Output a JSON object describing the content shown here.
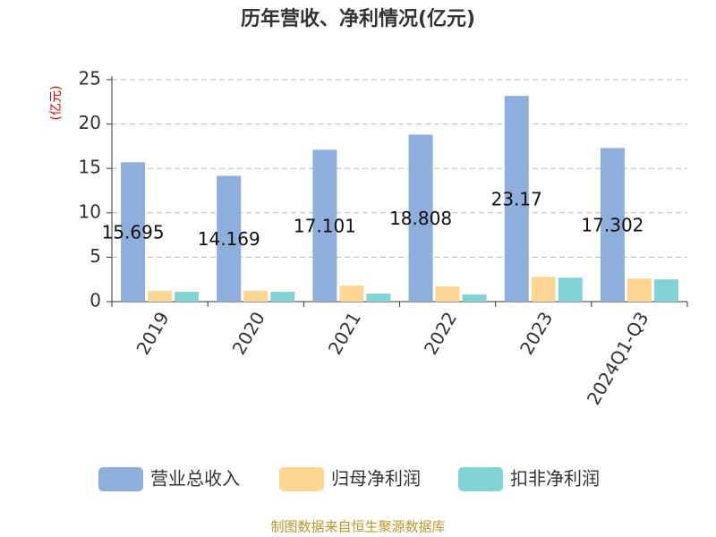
{
  "chart_data": {
    "type": "bar",
    "title": "历年营收、净利情况(亿元)",
    "y_label": "(亿元)",
    "categories": [
      "2019",
      "2020",
      "2021",
      "2022",
      "2023",
      "2024Q1-Q3"
    ],
    "series": [
      {
        "name": "营业总收入",
        "color": "#8eaedc",
        "values": [
          15.695,
          14.169,
          17.101,
          18.808,
          23.17,
          17.302
        ],
        "show_labels": true
      },
      {
        "name": "归母净利润",
        "color": "#fdd694",
        "values": [
          1.2,
          1.2,
          1.8,
          1.7,
          2.8,
          2.6
        ]
      },
      {
        "name": "扣非净利润",
        "color": "#82d3d6",
        "values": [
          1.1,
          1.1,
          0.9,
          0.8,
          2.7,
          2.5
        ]
      }
    ],
    "ylim": [
      0,
      25
    ],
    "yticks": [
      0,
      5,
      10,
      15,
      20,
      25
    ],
    "grid": true,
    "source": "制图数据来自恒生聚源数据库"
  }
}
